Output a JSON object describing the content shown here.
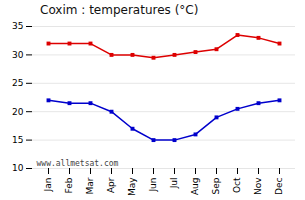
{
  "chart_data": {
    "type": "line",
    "title": "Coxim : temperatures (°C)",
    "categories": [
      "Jan",
      "Feb",
      "Mar",
      "Apr",
      "May",
      "Jun",
      "Jul",
      "Aug",
      "Sep",
      "Oct",
      "Nov",
      "Dec"
    ],
    "series": [
      {
        "color": "#dd0000",
        "values": [
          32,
          32,
          32,
          30,
          30,
          29.5,
          30,
          30.5,
          31,
          33.5,
          33,
          32
        ]
      },
      {
        "color": "#0000cc",
        "values": [
          22,
          21.5,
          21.5,
          20,
          17,
          15,
          15,
          16,
          19,
          20.5,
          21.5,
          22
        ]
      }
    ],
    "ylim": [
      10,
      35
    ],
    "yticks": [
      10,
      15,
      20,
      25,
      30,
      35
    ],
    "grid": true,
    "marker": "square",
    "annotations": [
      "www.allmetsat.com"
    ]
  }
}
